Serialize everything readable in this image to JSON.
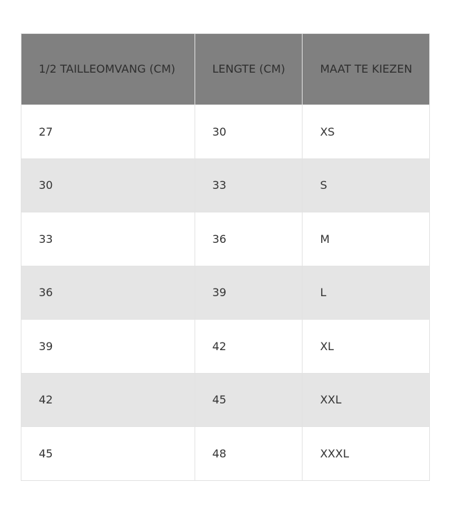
{
  "table": {
    "headers": [
      "1/2 TAILLEOMVANG (CM)",
      "LENGTE (CM)",
      "MAAT TE KIEZEN"
    ],
    "rows": [
      [
        "27",
        "30",
        "XS"
      ],
      [
        "30",
        "33",
        "S"
      ],
      [
        "33",
        "36",
        "M"
      ],
      [
        "36",
        "39",
        "L"
      ],
      [
        "39",
        "42",
        "XL"
      ],
      [
        "42",
        "45",
        "XXL"
      ],
      [
        "45",
        "48",
        "XXXL"
      ]
    ]
  },
  "colors": {
    "header_bg": "#808080",
    "alt_row_bg": "#e5e5e5",
    "border": "#e2e2e2"
  }
}
